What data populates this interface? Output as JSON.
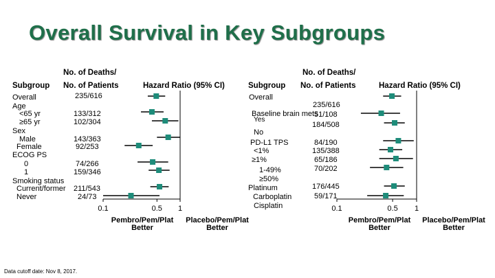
{
  "title": "Overall Survival in Key Subgroups",
  "footnote": "Data cutoff date: Nov 8, 2017.",
  "colors": {
    "title": "#1f6f4a",
    "marker": "#1e8c7a",
    "line": "#000000"
  },
  "left_panel": {
    "headers": {
      "subgroup": "Subgroup",
      "deaths_line1": "No. of Deaths/",
      "deaths_line2": "No. of Patients",
      "hr": "Hazard  Ratio (95% CI)"
    },
    "labels": [
      "Overall",
      "Age",
      "<65 yr",
      "≥65 yr",
      "Sex",
      "Male",
      "Female",
      "ECOG PS",
      "0",
      "1",
      "Smoking status",
      "Current/former",
      "Never"
    ],
    "counts": [
      "235/616",
      "133/312",
      "102/304",
      "143/363",
      "92/253",
      "74/266",
      "159/346",
      "211/543",
      "24/73"
    ],
    "ticks": [
      "0.1",
      "0.5",
      "1"
    ],
    "better_left": [
      "Pembro/Pem/Plat",
      "Better"
    ],
    "better_right": [
      "Placebo/Pem/Plat",
      "Better"
    ]
  },
  "right_panel": {
    "headers": {
      "subgroup": "Subgroup",
      "deaths_line1": "No. of Deaths/",
      "deaths_line2": "No. of Patients",
      "hr": "Hazard  Ratio (95% CI)"
    },
    "labels": [
      "Overall",
      "Baseline brain mets",
      "Yes",
      "No",
      "PD-L1  TPS",
      "<1%",
      "≥1%",
      "1-49%",
      "≥50%",
      "Platinum",
      "Carboplatin",
      "Cisplatin"
    ],
    "counts": [
      "235/616",
      "51/108",
      "184/508",
      "84/190",
      "135/388",
      "65/186",
      "70/202",
      "176/445",
      "59/171"
    ],
    "ticks": [
      "0.1",
      "0.5",
      "1"
    ],
    "better_left": [
      "Pembro/Pem/Plat",
      "Better"
    ],
    "better_right": [
      "Placebo/Pem/Plat",
      "Better"
    ]
  },
  "chart_data": [
    {
      "type": "forest",
      "title": "Overall Survival in Key Subgroups",
      "xlabel": "Hazard  Ratio (95% CI)",
      "xscale": "log",
      "xlim": [
        0.1,
        1
      ],
      "xticks": [
        0.1,
        0.5,
        1
      ],
      "reference_line": 1,
      "rows": [
        {
          "subgroup": "Overall",
          "deaths_patients": "235/616",
          "hr": 0.49,
          "ci": [
            0.38,
            0.64
          ]
        },
        {
          "subgroup": "<65 yr",
          "deaths_patients": "133/312",
          "hr": 0.43,
          "ci": [
            0.31,
            0.61
          ]
        },
        {
          "subgroup": "≥65 yr",
          "deaths_patients": "102/304",
          "hr": 0.64,
          "ci": [
            0.43,
            0.95
          ]
        },
        {
          "subgroup": "Male",
          "deaths_patients": "143/363",
          "hr": 0.7,
          "ci": [
            0.5,
            0.99
          ]
        },
        {
          "subgroup": "Female",
          "deaths_patients": "92/253",
          "hr": 0.29,
          "ci": [
            0.19,
            0.44
          ]
        },
        {
          "subgroup": "0",
          "deaths_patients": "74/266",
          "hr": 0.44,
          "ci": [
            0.28,
            0.7
          ]
        },
        {
          "subgroup": "1",
          "deaths_patients": "159/346",
          "hr": 0.53,
          "ci": [
            0.39,
            0.73
          ]
        },
        {
          "subgroup": "Current/former",
          "deaths_patients": "211/543",
          "hr": 0.54,
          "ci": [
            0.41,
            0.71
          ]
        },
        {
          "subgroup": "Never",
          "deaths_patients": "24/73",
          "hr": 0.23,
          "ci": [
            0.1,
            0.54
          ]
        }
      ]
    },
    {
      "type": "forest",
      "title": "Overall Survival in Key Subgroups",
      "xlabel": "Hazard  Ratio (95% CI)",
      "xscale": "log",
      "xlim": [
        0.1,
        1
      ],
      "xticks": [
        0.1,
        0.5,
        1
      ],
      "reference_line": 1,
      "rows": [
        {
          "subgroup": "Overall",
          "deaths_patients": "235/616",
          "hr": 0.49,
          "ci": [
            0.38,
            0.64
          ]
        },
        {
          "subgroup": "Yes",
          "deaths_patients": "51/108",
          "hr": 0.36,
          "ci": [
            0.2,
            0.62
          ]
        },
        {
          "subgroup": "No",
          "deaths_patients": "184/508",
          "hr": 0.53,
          "ci": [
            0.39,
            0.71
          ]
        },
        {
          "subgroup": "<1%",
          "deaths_patients": "84/190",
          "hr": 0.59,
          "ci": [
            0.38,
            0.92
          ]
        },
        {
          "subgroup": "≥1%",
          "deaths_patients": "135/388",
          "hr": 0.47,
          "ci": [
            0.34,
            0.66
          ]
        },
        {
          "subgroup": "1-49%",
          "deaths_patients": "65/186",
          "hr": 0.55,
          "ci": [
            0.34,
            0.9
          ]
        },
        {
          "subgroup": "≥50%",
          "deaths_patients": "70/202",
          "hr": 0.42,
          "ci": [
            0.26,
            0.68
          ]
        },
        {
          "subgroup": "Carboplatin",
          "deaths_patients": "176/445",
          "hr": 0.52,
          "ci": [
            0.39,
            0.71
          ]
        },
        {
          "subgroup": "Cisplatin",
          "deaths_patients": "59/171",
          "hr": 0.41,
          "ci": [
            0.24,
            0.69
          ]
        }
      ]
    }
  ]
}
